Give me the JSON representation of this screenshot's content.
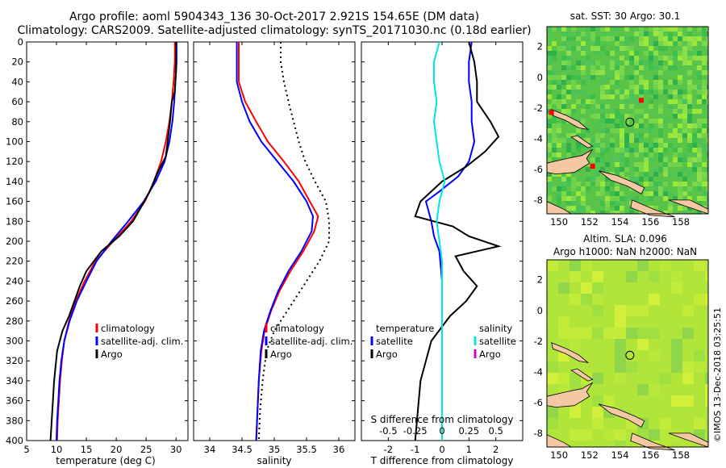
{
  "header": {
    "title_line1": "Argo profile: aoml 5904343_136 30-Oct-2017 2.921S 154.65E (DM data)",
    "title_line2": "Climatology: CARS2009. Satellite-adjusted climatology: synTS_20171030.nc (0.18d earlier)"
  },
  "colors": {
    "climatology": "#ff0000",
    "satellite_adj": "#0000ff",
    "argo": "#000000",
    "sat_sal": "#00e5e5",
    "argo_sal": "#d000d0"
  },
  "chart_data": [
    {
      "type": "line",
      "id": "temperature",
      "xlabel": "temperature (deg C)",
      "ylabel": "",
      "xlim": [
        5,
        32
      ],
      "ylim": [
        400,
        0
      ],
      "xticks": [
        "5",
        "10",
        "15",
        "20",
        "25",
        "30"
      ],
      "yticks": [
        "0",
        "20",
        "40",
        "60",
        "80",
        "100",
        "120",
        "140",
        "160",
        "180",
        "200",
        "220",
        "240",
        "260",
        "280",
        "300",
        "320",
        "340",
        "360",
        "380",
        "400"
      ],
      "legend": [
        "climatology",
        "satellite-adj. clim.",
        "Argo"
      ],
      "series": [
        {
          "name": "climatology",
          "color": "#ff0000",
          "points": [
            [
              29.8,
              0
            ],
            [
              29.8,
              20
            ],
            [
              29.6,
              40
            ],
            [
              29.3,
              60
            ],
            [
              28.9,
              80
            ],
            [
              28.3,
              100
            ],
            [
              27.5,
              120
            ],
            [
              26.3,
              140
            ],
            [
              24.8,
              160
            ],
            [
              22.5,
              180
            ],
            [
              19.5,
              200
            ],
            [
              16.5,
              220
            ],
            [
              14.7,
              240
            ],
            [
              13.2,
              260
            ],
            [
              12.1,
              280
            ],
            [
              11.3,
              300
            ],
            [
              10.9,
              320
            ],
            [
              10.6,
              340
            ],
            [
              10.4,
              360
            ],
            [
              10.2,
              380
            ],
            [
              10.1,
              400
            ]
          ]
        },
        {
          "name": "satellite-adj. clim.",
          "color": "#0000ff",
          "points": [
            [
              30.1,
              0
            ],
            [
              30.1,
              20
            ],
            [
              29.9,
              40
            ],
            [
              29.7,
              60
            ],
            [
              29.4,
              80
            ],
            [
              28.9,
              100
            ],
            [
              28.1,
              120
            ],
            [
              26.6,
              140
            ],
            [
              24.6,
              160
            ],
            [
              22.0,
              180
            ],
            [
              19.2,
              200
            ],
            [
              16.7,
              220
            ],
            [
              15.0,
              240
            ],
            [
              13.4,
              260
            ],
            [
              12.2,
              280
            ],
            [
              11.3,
              300
            ],
            [
              10.8,
              320
            ],
            [
              10.5,
              340
            ],
            [
              10.3,
              360
            ],
            [
              10.1,
              380
            ],
            [
              10.0,
              400
            ]
          ]
        },
        {
          "name": "Argo",
          "color": "#000000",
          "points": [
            [
              30.0,
              0
            ],
            [
              30.0,
              30
            ],
            [
              29.8,
              50
            ],
            [
              29.3,
              60
            ],
            [
              29.0,
              80
            ],
            [
              28.6,
              100
            ],
            [
              28.3,
              115
            ],
            [
              27.0,
              130
            ],
            [
              25.6,
              150
            ],
            [
              24.5,
              162
            ],
            [
              22.8,
              180
            ],
            [
              20.5,
              195
            ],
            [
              17.5,
              210
            ],
            [
              15.0,
              230
            ],
            [
              13.9,
              245
            ],
            [
              13.0,
              260
            ],
            [
              12.1,
              275
            ],
            [
              11.0,
              290
            ],
            [
              10.1,
              310
            ],
            [
              9.6,
              340
            ],
            [
              9.4,
              360
            ],
            [
              9.2,
              380
            ],
            [
              9.0,
              400
            ]
          ]
        }
      ]
    },
    {
      "type": "line",
      "id": "salinity",
      "xlabel": "salinity",
      "xlim": [
        33.75,
        36.25
      ],
      "ylim": [
        400,
        0
      ],
      "xticks": [
        "34",
        "34.5",
        "35",
        "35.5",
        "36"
      ],
      "legend": [
        "climatology",
        "satellite-adj. clim.",
        "Argo"
      ],
      "series": [
        {
          "name": "climatology",
          "color": "#ff0000",
          "points": [
            [
              34.45,
              0
            ],
            [
              34.45,
              40
            ],
            [
              34.55,
              60
            ],
            [
              34.72,
              80
            ],
            [
              34.9,
              100
            ],
            [
              35.15,
              120
            ],
            [
              35.38,
              140
            ],
            [
              35.55,
              160
            ],
            [
              35.68,
              175
            ],
            [
              35.62,
              190
            ],
            [
              35.45,
              210
            ],
            [
              35.25,
              230
            ],
            [
              35.08,
              250
            ],
            [
              34.95,
              270
            ],
            [
              34.85,
              290
            ],
            [
              34.8,
              310
            ],
            [
              34.76,
              340
            ],
            [
              34.74,
              370
            ],
            [
              34.72,
              400
            ]
          ]
        },
        {
          "name": "satellite-adj. clim.",
          "color": "#0000ff",
          "points": [
            [
              34.42,
              0
            ],
            [
              34.42,
              40
            ],
            [
              34.5,
              60
            ],
            [
              34.62,
              80
            ],
            [
              34.8,
              100
            ],
            [
              35.05,
              120
            ],
            [
              35.3,
              140
            ],
            [
              35.5,
              160
            ],
            [
              35.6,
              175
            ],
            [
              35.58,
              190
            ],
            [
              35.42,
              210
            ],
            [
              35.22,
              230
            ],
            [
              35.06,
              250
            ],
            [
              34.94,
              270
            ],
            [
              34.84,
              290
            ],
            [
              34.79,
              310
            ],
            [
              34.76,
              340
            ],
            [
              34.74,
              370
            ],
            [
              34.72,
              400
            ]
          ]
        },
        {
          "name": "Argo (dotted)",
          "color": "#000000",
          "points": [
            [
              35.1,
              0
            ],
            [
              35.1,
              20
            ],
            [
              35.15,
              40
            ],
            [
              35.22,
              60
            ],
            [
              35.3,
              80
            ],
            [
              35.38,
              100
            ],
            [
              35.48,
              120
            ],
            [
              35.63,
              140
            ],
            [
              35.8,
              160
            ],
            [
              35.85,
              180
            ],
            [
              35.85,
              200
            ],
            [
              35.7,
              220
            ],
            [
              35.45,
              245
            ],
            [
              35.2,
              270
            ],
            [
              35.0,
              290
            ],
            [
              34.88,
              310
            ],
            [
              34.82,
              340
            ],
            [
              34.78,
              370
            ],
            [
              34.76,
              400
            ]
          ]
        }
      ]
    },
    {
      "type": "line",
      "id": "difference",
      "xlabel": "T difference from climatology",
      "xlabel_top": "S difference from climatology",
      "xlim": [
        -3,
        3
      ],
      "ylim": [
        400,
        0
      ],
      "xticks": [
        "-2",
        "-1",
        "0",
        "1",
        "2"
      ],
      "xticks_top": [
        "-0.5",
        "-0.25",
        "0",
        "0.25",
        "0.5"
      ],
      "legend_left": [
        "temperature",
        "satellite",
        "Argo"
      ],
      "legend_right": [
        "salinity",
        "satellite",
        "Argo"
      ],
      "series": [
        {
          "name": "T satellite",
          "color": "#0000ff",
          "points": [
            [
              1.1,
              0
            ],
            [
              1.0,
              20
            ],
            [
              1.0,
              40
            ],
            [
              1.1,
              60
            ],
            [
              1.1,
              80
            ],
            [
              1.2,
              100
            ],
            [
              1.1,
              110
            ],
            [
              1.0,
              120
            ],
            [
              0.6,
              135
            ],
            [
              -0.1,
              150
            ],
            [
              -0.6,
              160
            ],
            [
              -0.4,
              180
            ],
            [
              -0.3,
              195
            ],
            [
              -0.1,
              210
            ],
            [
              0.0,
              240
            ],
            [
              0.0,
              280
            ],
            [
              0.0,
              400
            ]
          ]
        },
        {
          "name": "T Argo",
          "color": "#000000",
          "points": [
            [
              1.0,
              0
            ],
            [
              1.2,
              20
            ],
            [
              1.3,
              40
            ],
            [
              1.3,
              60
            ],
            [
              1.8,
              80
            ],
            [
              2.1,
              95
            ],
            [
              1.6,
              110
            ],
            [
              0.9,
              125
            ],
            [
              0.0,
              140
            ],
            [
              -0.8,
              160
            ],
            [
              -1.0,
              175
            ],
            [
              -0.3,
              180
            ],
            [
              0.4,
              185
            ],
            [
              1.0,
              195
            ],
            [
              2.1,
              205
            ],
            [
              0.5,
              215
            ],
            [
              0.8,
              230
            ],
            [
              1.3,
              245
            ],
            [
              0.9,
              260
            ],
            [
              0.3,
              275
            ],
            [
              -0.4,
              300
            ],
            [
              -0.8,
              340
            ],
            [
              -0.9,
              370
            ],
            [
              -1.0,
              400
            ]
          ]
        },
        {
          "name": "S satellite",
          "color": "#00e5e5",
          "points": [
            [
              -0.1,
              0
            ],
            [
              -0.3,
              20
            ],
            [
              -0.3,
              40
            ],
            [
              -0.2,
              60
            ],
            [
              -0.3,
              80
            ],
            [
              -0.2,
              100
            ],
            [
              -0.1,
              120
            ],
            [
              0.1,
              140
            ],
            [
              -0.1,
              160
            ],
            [
              -0.2,
              180
            ],
            [
              -0.1,
              200
            ],
            [
              0.0,
              220
            ],
            [
              0.0,
              260
            ],
            [
              0.0,
              300
            ],
            [
              0.0,
              400
            ]
          ]
        }
      ]
    }
  ],
  "map_top": {
    "title": "sat. SST: 30 Argo: 30.1",
    "xticks": [
      "150",
      "152",
      "154",
      "156",
      "158"
    ],
    "yticks": [
      "2",
      "0",
      "-2",
      "-4",
      "-6",
      "-8"
    ]
  },
  "map_bottom": {
    "title_line1": "Altim. SLA: 0.096",
    "title_line2": "Argo h1000: NaN h2000: NaN",
    "xticks": [
      "150",
      "152",
      "154",
      "156",
      "158"
    ],
    "yticks": [
      "2",
      "0",
      "-2",
      "-4",
      "-6",
      "-8"
    ]
  },
  "watermark": "©IMOS 13-Dec-2018 03:25:51"
}
